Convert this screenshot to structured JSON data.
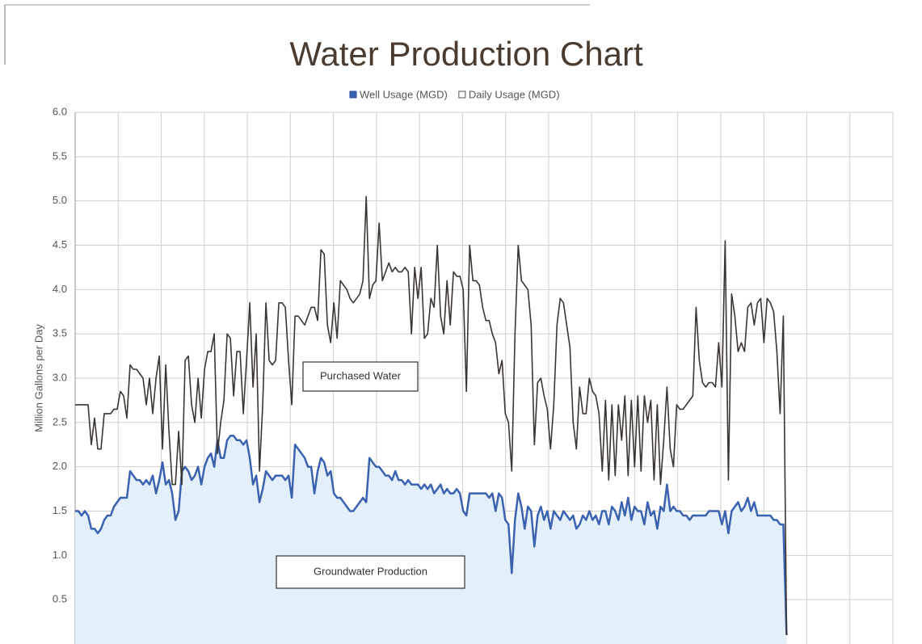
{
  "chart_data": {
    "type": "line",
    "title": "Water Production Chart",
    "y_label": "Million Gallons per Day",
    "ylim": [
      0,
      6
    ],
    "yticks": [
      0.5,
      {
        "value": 1,
        "label": "1.0"
      },
      1.5,
      {
        "value": 2,
        "label": "2.0"
      },
      2.5,
      {
        "value": 3,
        "label": "3.0"
      },
      3.5,
      {
        "value": 4,
        "label": "4.0"
      },
      4.5,
      {
        "value": 5,
        "label": "5.0"
      },
      5.5,
      {
        "value": 6,
        "label": "6.0"
      }
    ],
    "grid": true,
    "legend": "top",
    "annotations": [
      "Purchased Water",
      "Groundwater Production"
    ],
    "series": [
      {
        "name": "Well Usage (MGD)",
        "color": "#3a62b0",
        "fill": "#e3effa",
        "area": true,
        "values": [
          1.5,
          1.5,
          1.45,
          1.5,
          1.45,
          1.3,
          1.3,
          1.25,
          1.3,
          1.4,
          1.45,
          1.45,
          1.55,
          1.6,
          1.65,
          1.65,
          1.65,
          1.95,
          1.9,
          1.85,
          1.85,
          1.8,
          1.85,
          1.8,
          1.9,
          1.7,
          1.85,
          2.05,
          1.8,
          1.85,
          1.7,
          1.4,
          1.5,
          1.95,
          2.0,
          1.95,
          1.85,
          1.9,
          2.0,
          1.8,
          2.0,
          2.1,
          2.15,
          2.0,
          2.3,
          2.1,
          2.1,
          2.3,
          2.35,
          2.35,
          2.3,
          2.3,
          2.25,
          2.3,
          2.1,
          1.8,
          1.9,
          1.6,
          1.75,
          1.95,
          1.9,
          1.85,
          1.9,
          1.9,
          1.9,
          1.85,
          1.9,
          1.65,
          2.25,
          2.2,
          2.15,
          2.1,
          2.0,
          2.0,
          1.7,
          1.95,
          2.1,
          2.05,
          1.9,
          1.95,
          1.7,
          1.65,
          1.65,
          1.6,
          1.55,
          1.5,
          1.5,
          1.55,
          1.6,
          1.65,
          1.6,
          2.1,
          2.05,
          2.0,
          2.0,
          1.95,
          1.9,
          1.9,
          1.85,
          1.95,
          1.85,
          1.85,
          1.8,
          1.85,
          1.8,
          1.8,
          1.8,
          1.75,
          1.8,
          1.75,
          1.8,
          1.7,
          1.75,
          1.8,
          1.7,
          1.75,
          1.7,
          1.7,
          1.75,
          1.7,
          1.5,
          1.45,
          1.7,
          1.7,
          1.7,
          1.7,
          1.7,
          1.7,
          1.65,
          1.7,
          1.5,
          1.7,
          1.65,
          1.4,
          1.35,
          0.8,
          1.4,
          1.7,
          1.55,
          1.3,
          1.55,
          1.5,
          1.1,
          1.45,
          1.55,
          1.4,
          1.5,
          1.3,
          1.5,
          1.45,
          1.4,
          1.5,
          1.45,
          1.4,
          1.45,
          1.3,
          1.35,
          1.45,
          1.4,
          1.5,
          1.4,
          1.45,
          1.35,
          1.5,
          1.5,
          1.35,
          1.55,
          1.5,
          1.4,
          1.6,
          1.45,
          1.65,
          1.4,
          1.55,
          1.5,
          1.5,
          1.35,
          1.6,
          1.45,
          1.5,
          1.3,
          1.55,
          1.5,
          1.8,
          1.5,
          1.55,
          1.5,
          1.5,
          1.45,
          1.45,
          1.4,
          1.45,
          1.45,
          1.45,
          1.45,
          1.45,
          1.5,
          1.5,
          1.5,
          1.5,
          1.35,
          1.5,
          1.25,
          1.5,
          1.55,
          1.6,
          1.5,
          1.55,
          1.65,
          1.5,
          1.6,
          1.45,
          1.45,
          1.45,
          1.45,
          1.45,
          1.4,
          1.4,
          1.35,
          1.35,
          0.1
        ]
      },
      {
        "name": "Daily Usage (MGD)",
        "color": "#3a3530",
        "values": [
          2.7,
          2.7,
          2.7,
          2.7,
          2.7,
          2.25,
          2.55,
          2.2,
          2.2,
          2.6,
          2.6,
          2.6,
          2.65,
          2.65,
          2.85,
          2.8,
          2.55,
          3.15,
          3.1,
          3.1,
          3.05,
          3.0,
          2.7,
          3.0,
          2.6,
          3.0,
          3.25,
          2.2,
          3.15,
          2.4,
          1.8,
          1.8,
          2.4,
          1.8,
          3.2,
          3.25,
          2.7,
          2.5,
          3.0,
          2.55,
          3.1,
          3.3,
          3.3,
          3.5,
          2.15,
          2.5,
          2.75,
          3.5,
          3.45,
          2.8,
          3.3,
          3.3,
          2.6,
          3.2,
          3.85,
          2.9,
          3.5,
          1.95,
          2.7,
          3.85,
          3.2,
          3.15,
          3.2,
          3.85,
          3.85,
          3.8,
          3.2,
          2.7,
          3.7,
          3.7,
          3.65,
          3.6,
          3.7,
          3.8,
          3.8,
          3.65,
          4.45,
          4.4,
          3.6,
          3.4,
          3.85,
          3.45,
          4.1,
          4.05,
          4.0,
          3.9,
          3.85,
          3.9,
          3.95,
          4.1,
          5.05,
          3.9,
          4.05,
          4.1,
          4.75,
          4.1,
          4.2,
          4.3,
          4.2,
          4.25,
          4.2,
          4.2,
          4.25,
          4.2,
          3.5,
          4.25,
          3.9,
          4.25,
          3.45,
          3.5,
          3.9,
          3.8,
          4.5,
          3.7,
          3.5,
          4.1,
          3.6,
          4.2,
          4.15,
          4.15,
          4.0,
          2.85,
          4.5,
          4.1,
          4.1,
          4.05,
          3.8,
          3.65,
          3.65,
          3.5,
          3.4,
          3.05,
          3.2,
          2.6,
          2.5,
          1.95,
          3.5,
          4.5,
          4.1,
          4.05,
          4.0,
          3.6,
          2.25,
          2.95,
          3.0,
          2.8,
          2.65,
          2.2,
          2.7,
          3.6,
          3.9,
          3.85,
          3.6,
          3.35,
          2.5,
          2.2,
          2.9,
          2.6,
          2.6,
          3.0,
          2.85,
          2.8,
          2.6,
          1.95,
          2.75,
          1.85,
          2.7,
          1.9,
          2.7,
          2.3,
          2.8,
          1.9,
          2.75,
          2.0,
          2.8,
          1.95,
          2.8,
          2.5,
          2.75,
          1.85,
          2.7,
          1.8,
          2.3,
          2.9,
          2.2,
          2.0,
          2.7,
          2.65,
          2.65,
          2.7,
          2.75,
          2.8,
          3.8,
          3.2,
          2.95,
          2.9,
          2.95,
          2.95,
          2.9,
          3.4,
          2.9,
          4.55,
          1.85,
          3.95,
          3.7,
          3.3,
          3.4,
          3.3,
          3.8,
          3.85,
          3.6,
          3.85,
          3.9,
          3.4,
          3.9,
          3.85,
          3.75,
          3.3,
          2.6,
          3.7,
          0.1
        ]
      }
    ]
  }
}
